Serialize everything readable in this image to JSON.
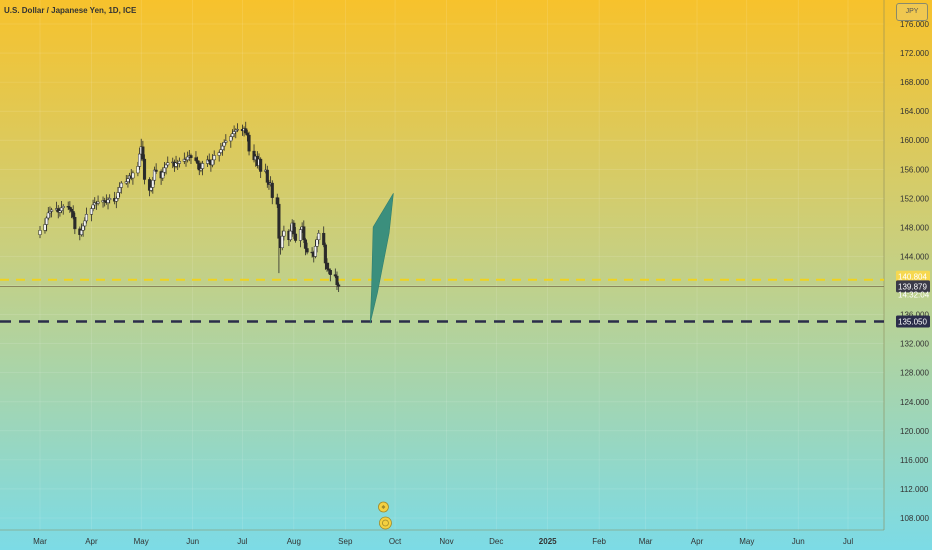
{
  "header": {
    "title": "U.S. Dollar / Japanese Yen, 1D, ICE",
    "symbol_box": "JPY"
  },
  "colors": {
    "bg_top": "#f7c22c",
    "bg_bottom": "#7cdbe6",
    "candle": "#2a2a2a",
    "current_line": "#7a6f4a",
    "yellow_dash": "#f1d21e",
    "dark_dash": "#2b2d4a",
    "arrow": "#3b8f7d",
    "event_icon": "#f4d040"
  },
  "chart_data": {
    "type": "candlestick",
    "title": "U.S. Dollar / Japanese Yen, 1D, ICE",
    "ylim": [
      106.5,
      178.0
    ],
    "y_ticks": [
      "108.000",
      "112.000",
      "116.000",
      "120.000",
      "124.000",
      "128.000",
      "132.000",
      "136.000",
      "140.000",
      "144.000",
      "148.000",
      "152.000",
      "156.000",
      "160.000",
      "164.000",
      "168.000",
      "172.000",
      "176.000"
    ],
    "x_ticks": [
      {
        "label": "Mar",
        "bold": false
      },
      {
        "label": "Apr",
        "bold": false
      },
      {
        "label": "May",
        "bold": false
      },
      {
        "label": "Jun",
        "bold": false
      },
      {
        "label": "Jul",
        "bold": false
      },
      {
        "label": "Aug",
        "bold": false
      },
      {
        "label": "Sep",
        "bold": false
      },
      {
        "label": "Oct",
        "bold": false
      },
      {
        "label": "Nov",
        "bold": false
      },
      {
        "label": "Dec",
        "bold": false
      },
      {
        "label": "2025",
        "bold": true
      },
      {
        "label": "Feb",
        "bold": false
      },
      {
        "label": "Mar",
        "bold": false
      },
      {
        "label": "Apr",
        "bold": false
      },
      {
        "label": "May",
        "bold": false
      },
      {
        "label": "Jun",
        "bold": false
      },
      {
        "label": "Jul",
        "bold": false
      }
    ],
    "closes": [
      147.6,
      148.4,
      149.3,
      150.0,
      150.2,
      150.4,
      150.6,
      150.1,
      150.3,
      150.7,
      150.9,
      150.8,
      150.5,
      150.2,
      149.4,
      147.8,
      147.0,
      147.6,
      148.2,
      148.9,
      149.8,
      150.6,
      151.1,
      151.4,
      151.3,
      151.5,
      151.7,
      151.6,
      151.4,
      151.8,
      152.0,
      151.6,
      152.0,
      152.8,
      153.5,
      154.1,
      154.3,
      154.7,
      155.1,
      154.8,
      155.5,
      156.4,
      158.1,
      159.1,
      157.4,
      154.6,
      153.1,
      153.5,
      154.5,
      155.9,
      155.7,
      154.8,
      155.6,
      156.2,
      156.6,
      156.9,
      157.0,
      156.4,
      156.9,
      156.8,
      157.1,
      157.4,
      157.3,
      157.7,
      157.9,
      157.6,
      157.2,
      156.8,
      155.9,
      156.1,
      156.8,
      157.3,
      157.1,
      156.6,
      157.3,
      157.9,
      158.3,
      158.7,
      159.2,
      159.7,
      159.9,
      160.5,
      160.9,
      161.2,
      161.4,
      161.5,
      161.3,
      161.6,
      161.0,
      160.7,
      158.5,
      157.3,
      157.8,
      156.5,
      157.4,
      155.7,
      155.9,
      154.2,
      153.9,
      154.1,
      152.1,
      151.2,
      146.5,
      145.2,
      146.8,
      147.5,
      146.3,
      147.5,
      148.6,
      147.1,
      146.2,
      147.7,
      148.1,
      146.3,
      145.1,
      144.6,
      144.5,
      144.0,
      145.4,
      146.3,
      147.2,
      145.6,
      143.1,
      142.3,
      142.1,
      141.5,
      141.3,
      140.1,
      139.88
    ],
    "current_price": "139.879",
    "current_price_secondary": "14:32:04",
    "yellow_level": "140.804",
    "support_level": "135.050",
    "arrow_points": [
      {
        "date": "2024-09-16",
        "price": 134.8
      },
      {
        "date": "2024-09-18",
        "price": 139.3
      },
      {
        "date": "2024-09-22",
        "price": 148.6
      },
      {
        "date": "2024-09-30",
        "price": 152.7
      }
    ]
  },
  "events": {
    "top_icon": "earnings-event-icon",
    "bottom_icon": "dividends-event-icon"
  }
}
